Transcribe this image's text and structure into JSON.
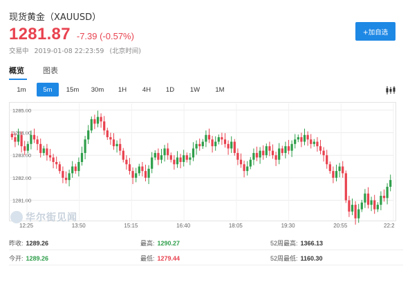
{
  "header": {
    "title": "现货黄金（XAUUSD）",
    "price": "1281.87",
    "change": "-7.39 (-0.57%)",
    "status": "交易中",
    "datetime": "2019-01-08 22:23:59",
    "timezone": "(北京时间)",
    "add_button": "+加自选"
  },
  "tabs": [
    {
      "label": "概览",
      "active": true
    },
    {
      "label": "图表",
      "active": false
    }
  ],
  "periods": [
    {
      "label": "1m",
      "active": false
    },
    {
      "label": "5m",
      "active": true
    },
    {
      "label": "15m",
      "active": false
    },
    {
      "label": "30m",
      "active": false
    },
    {
      "label": "1H",
      "active": false
    },
    {
      "label": "4H",
      "active": false
    },
    {
      "label": "1D",
      "active": false
    },
    {
      "label": "1W",
      "active": false
    },
    {
      "label": "1M",
      "active": false
    }
  ],
  "chart_type_icon": "candlestick-icon",
  "watermark": "华尔街见闻",
  "colors": {
    "up": "#2e9e4a",
    "down": "#e8424f",
    "accent": "#1e88e5"
  },
  "chart_data": {
    "type": "candlestick",
    "ylim": [
      1280.1,
      1285.3
    ],
    "yticks": [
      "1285.00",
      "1284.00",
      "1283.00",
      "1282.00",
      "1281.00"
    ],
    "xticks": [
      "12:25",
      "13:50",
      "15:15",
      "16:40",
      "18:05",
      "19:30",
      "20:55",
      "22:2"
    ],
    "grid": true,
    "closes": [
      1283.8,
      1283.6,
      1283.9,
      1283.4,
      1283.2,
      1283.5,
      1283.9,
      1283.7,
      1283.5,
      1283.1,
      1283.3,
      1283.0,
      1282.9,
      1282.7,
      1282.6,
      1282.3,
      1282.0,
      1281.9,
      1282.2,
      1282.5,
      1282.3,
      1282.7,
      1283.1,
      1283.7,
      1284.1,
      1284.6,
      1284.4,
      1284.7,
      1284.5,
      1284.1,
      1283.8,
      1283.7,
      1283.4,
      1283.5,
      1283.2,
      1282.8,
      1282.6,
      1282.3,
      1282.0,
      1282.2,
      1282.5,
      1282.3,
      1282.0,
      1282.4,
      1282.9,
      1283.1,
      1282.8,
      1283.0,
      1283.3,
      1283.0,
      1282.8,
      1282.6,
      1282.9,
      1282.7,
      1283.0,
      1282.8,
      1282.9,
      1283.3,
      1283.5,
      1283.4,
      1283.6,
      1283.9,
      1283.7,
      1283.4,
      1283.6,
      1283.8,
      1283.7,
      1283.5,
      1283.3,
      1283.6,
      1283.1,
      1282.8,
      1282.6,
      1282.3,
      1282.5,
      1282.8,
      1283.1,
      1282.9,
      1283.2,
      1283.0,
      1283.4,
      1283.2,
      1283.0,
      1282.8,
      1283.3,
      1283.1,
      1283.4,
      1283.2,
      1283.5,
      1283.7,
      1283.8,
      1283.6,
      1283.9,
      1283.7,
      1283.5,
      1283.6,
      1283.4,
      1283.2,
      1283.0,
      1282.6,
      1282.3,
      1282.0,
      1282.3,
      1282.5,
      1282.2,
      1281.0,
      1280.5,
      1280.8,
      1280.2,
      1280.6,
      1280.9,
      1281.3,
      1280.8,
      1281.0,
      1280.6,
      1280.8,
      1281.2,
      1281.1,
      1281.6,
      1281.9
    ]
  },
  "stats": [
    [
      {
        "label": "昨收:",
        "value": "1289.26",
        "tone": "neutral"
      },
      {
        "label": "最高:",
        "value": "1290.27",
        "tone": "up"
      },
      {
        "label": "52周最高:",
        "value": "1366.13",
        "tone": "neutral"
      }
    ],
    [
      {
        "label": "今开:",
        "value": "1289.26",
        "tone": "up"
      },
      {
        "label": "最低:",
        "value": "1279.44",
        "tone": "down"
      },
      {
        "label": "52周最低:",
        "value": "1160.30",
        "tone": "neutral"
      }
    ]
  ]
}
